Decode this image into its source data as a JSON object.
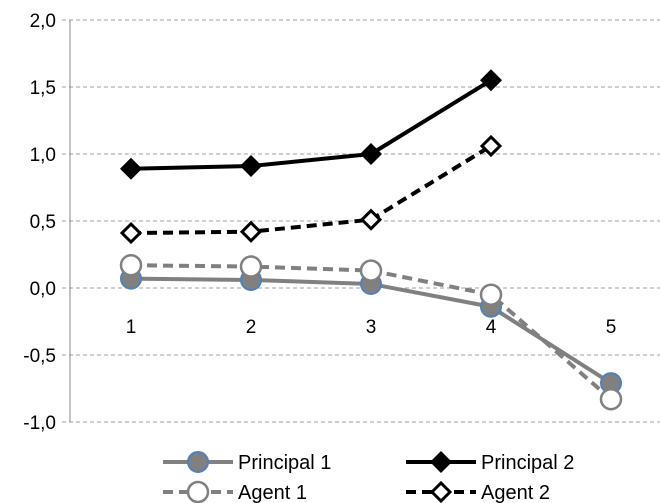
{
  "chart_data": {
    "type": "line",
    "title": "",
    "xlabel": "",
    "ylabel": "",
    "x": [
      1,
      2,
      3,
      4,
      5
    ],
    "x_tick_labels": [
      "1",
      "2",
      "3",
      "4",
      "5"
    ],
    "y_tick_labels": [
      "2,0",
      "1,5",
      "1,0",
      "0,5",
      "0,0",
      "-0,5",
      "-1,0"
    ],
    "y_ticks": [
      2.0,
      1.5,
      1.0,
      0.5,
      0.0,
      -0.5,
      -1.0
    ],
    "ylim": [
      -1.0,
      2.0
    ],
    "grid": "horizontal dashed",
    "legend_position": "bottom",
    "series": [
      {
        "name": "Principal 1",
        "values": [
          0.07,
          0.06,
          0.03,
          -0.14,
          -0.71
        ],
        "color": "#808080",
        "marker": "filled-circle",
        "marker_fill": "#808080",
        "marker_edge": "#4f81bd",
        "line_style": "solid"
      },
      {
        "name": "Principal 2",
        "values": [
          0.89,
          0.91,
          1.0,
          1.55,
          null
        ],
        "color": "#000000",
        "marker": "filled-diamond",
        "line_style": "solid"
      },
      {
        "name": "Agent 1",
        "values": [
          0.17,
          0.16,
          0.13,
          -0.05,
          -0.83
        ],
        "color": "#808080",
        "marker": "open-circle",
        "line_style": "dashed"
      },
      {
        "name": "Agent 2",
        "values": [
          0.41,
          0.42,
          0.51,
          1.06,
          null
        ],
        "color": "#000000",
        "marker": "open-diamond",
        "line_style": "dashed"
      }
    ]
  }
}
